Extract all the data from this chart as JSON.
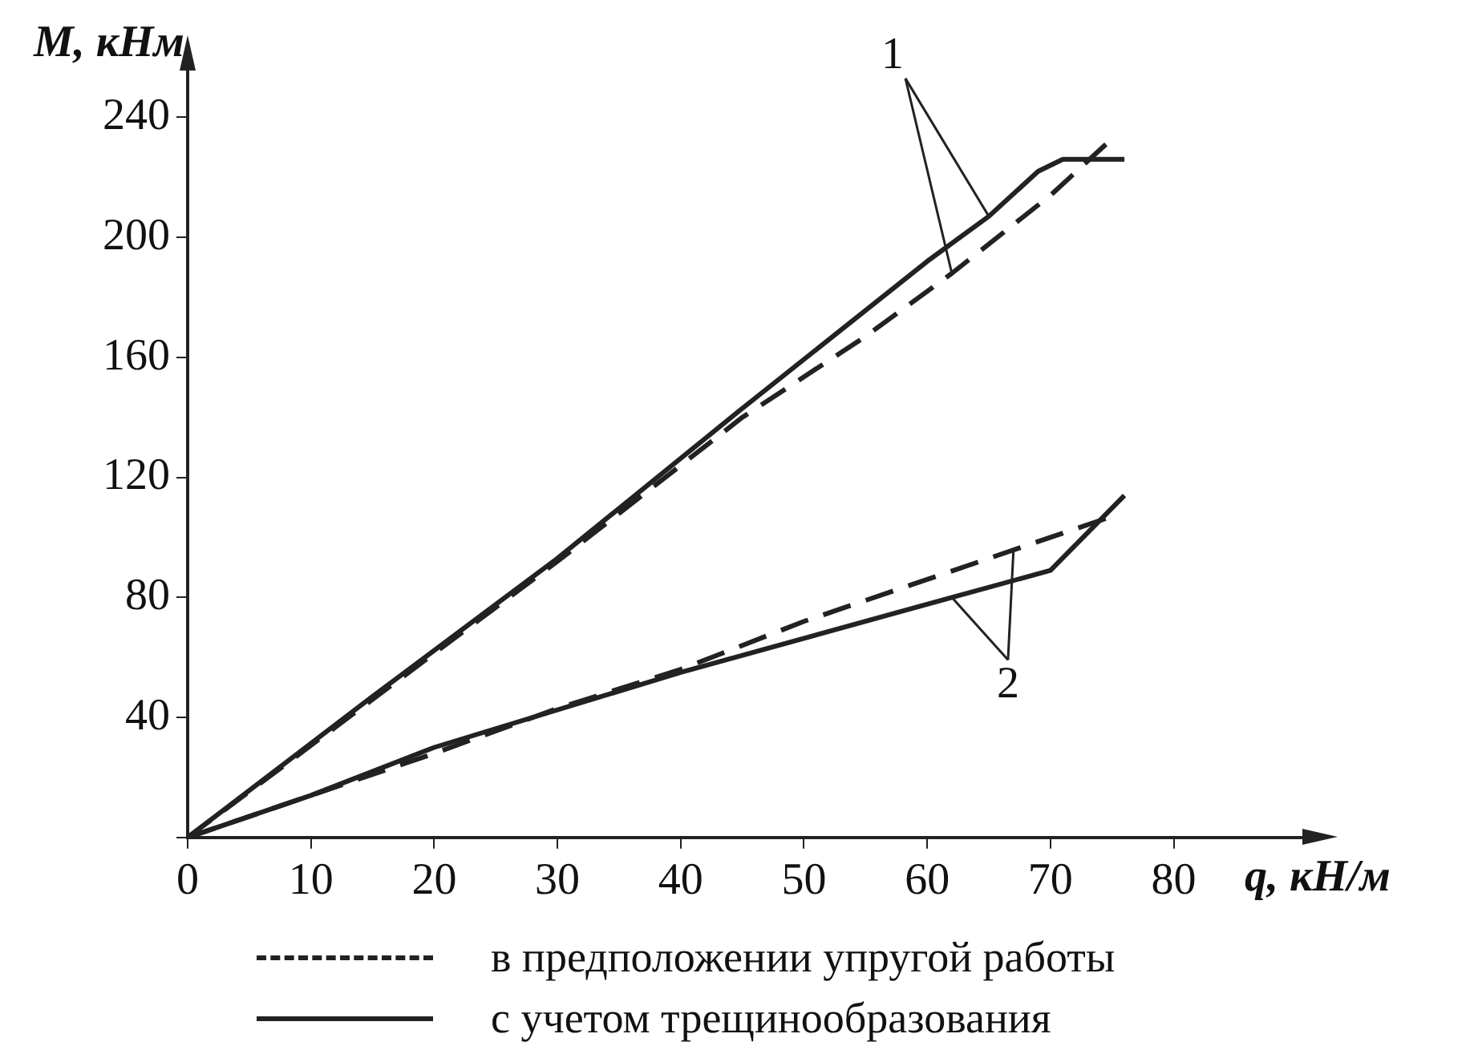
{
  "chart_data": {
    "type": "line",
    "xlabel": "q, кН/м",
    "ylabel": "M, кНм",
    "xlim": [
      0,
      92
    ],
    "ylim": [
      0,
      262
    ],
    "xticks": [
      0,
      10,
      20,
      30,
      40,
      50,
      60,
      70,
      80
    ],
    "yticks": [
      {
        "value": 0,
        "label": null
      },
      40,
      80,
      120,
      160,
      200,
      240
    ],
    "grid": false,
    "legend": "bottom",
    "marker": "none",
    "series": [
      {
        "name": "в предположении упругой работы",
        "color": "#222222",
        "line_style": "dashed",
        "x": [
          0,
          15,
          30,
          45,
          55,
          62,
          70,
          74.5
        ],
        "values": [
          0,
          46,
          92,
          140,
          167,
          188,
          214,
          231
        ]
      },
      {
        "name": "с учетом трещинообразования",
        "color": "#222222",
        "line_style": "solid",
        "x": [
          0,
          15,
          30,
          45,
          60,
          65,
          69,
          71,
          76
        ],
        "values": [
          0,
          47,
          93,
          143,
          192,
          207,
          222,
          226,
          226
        ]
      },
      {
        "color": "#222222",
        "line_style": "dashed",
        "x": [
          0,
          10,
          20,
          30,
          40,
          50,
          60,
          70,
          75
        ],
        "values": [
          0,
          14,
          28,
          43,
          56,
          72,
          86,
          100,
          107
        ]
      },
      {
        "color": "#222222",
        "line_style": "solid",
        "x": [
          0,
          10,
          20,
          40,
          62,
          70,
          76
        ],
        "values": [
          0,
          14,
          30,
          55,
          80,
          89,
          114
        ]
      }
    ],
    "annotations": [
      {
        "text": "1",
        "x": 65,
        "y": 207
      },
      {
        "text": "2",
        "x": 62,
        "y": 80
      }
    ]
  }
}
